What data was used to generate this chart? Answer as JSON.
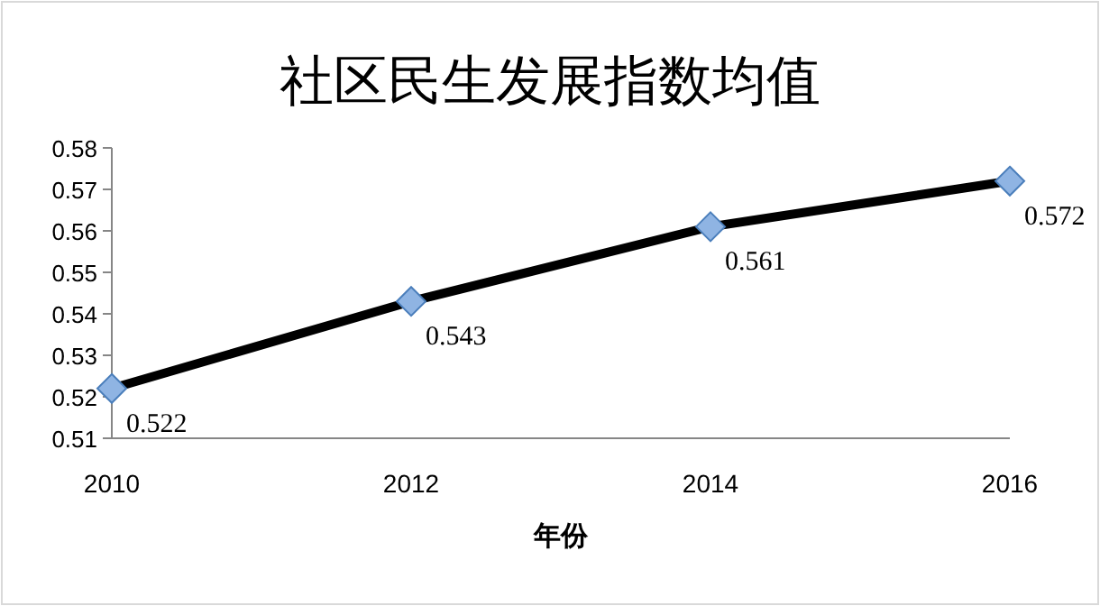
{
  "chart_data": {
    "type": "line",
    "title": "社区民生发展指数均值",
    "xlabel": "年份",
    "categories": [
      "2010",
      "2012",
      "2014",
      "2016"
    ],
    "series": [
      {
        "color": "#000000",
        "values": [
          0.522,
          0.543,
          0.561,
          0.572
        ]
      }
    ],
    "ylim": [
      0.51,
      0.58
    ],
    "yticks": [
      0.51,
      0.52,
      0.53,
      0.54,
      0.55,
      0.56,
      0.57,
      0.58
    ],
    "marker": "diamond",
    "line_style": "solid",
    "data_labels": true,
    "grid": false
  }
}
